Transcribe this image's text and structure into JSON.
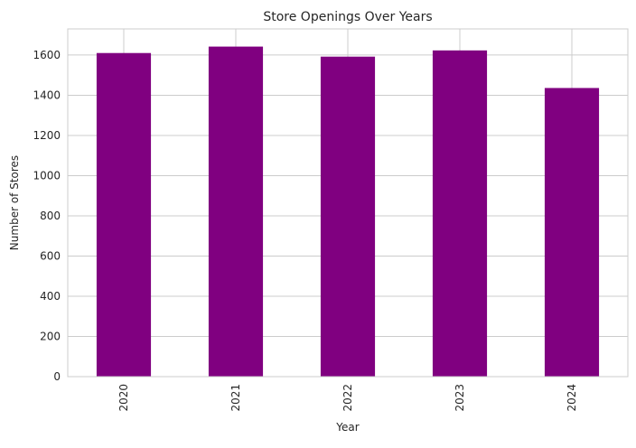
{
  "chart_data": {
    "type": "bar",
    "title": "Store Openings Over Years",
    "xlabel": "Year",
    "ylabel": "Number of Stores",
    "categories": [
      "2020",
      "2021",
      "2022",
      "2023",
      "2024"
    ],
    "values": [
      1610,
      1642,
      1592,
      1623,
      1436
    ],
    "ylim": [
      0,
      1730
    ],
    "yticks": [
      0,
      200,
      400,
      600,
      800,
      1000,
      1200,
      1400,
      1600
    ],
    "grid": true,
    "bar_color": "#800080",
    "grid_color": "#cccccc",
    "x_tick_rotation": "vertical"
  }
}
